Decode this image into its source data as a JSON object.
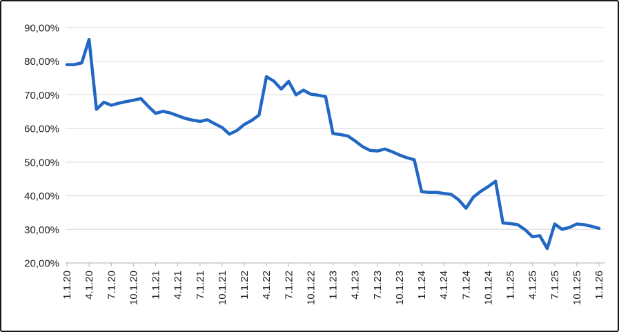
{
  "window": {
    "background": "#ffffff",
    "border_color": "#1a1a1a"
  },
  "chart_data": {
    "type": "line",
    "title": "",
    "legend": "none",
    "grid": "horizontal only",
    "unit": "%",
    "decimal_style": "comma",
    "ylim": [
      20,
      90
    ],
    "y_ticks": [
      90,
      80,
      70,
      60,
      50,
      40,
      30,
      20
    ],
    "y_tick_labels": [
      "90,00%",
      "80,00%",
      "70,00%",
      "60,00%",
      "50,00%",
      "40,00%",
      "30,00%",
      "20,00%"
    ],
    "x_tick_labels": [
      "1.1.20",
      "4.1.20",
      "7.1.20",
      "10.1.20",
      "1.1.21",
      "4.1.21",
      "7.1.21",
      "10.1.21",
      "1.1.22",
      "4.1.22",
      "7.1.22",
      "10.1.22",
      "1.1.23",
      "4.1.23",
      "7.1.23",
      "10.1.23",
      "1.1.24",
      "4.1.24",
      "7.1.24",
      "10.1.24",
      "1.1.25",
      "4.1.25",
      "7.1.25",
      "10.1.25",
      "1.1.26"
    ],
    "x_label_rotation_deg": -90,
    "points_per_quarter": 3,
    "x_start_label": "1.1.20",
    "x_end_label": "1.1.26",
    "series": [
      {
        "name": "percentage-series",
        "color": "#2268C3",
        "values": [
          79.0,
          79.0,
          79.5,
          86.5,
          65.7,
          67.8,
          66.9,
          67.5,
          68.0,
          68.4,
          68.9,
          66.6,
          64.5,
          65.1,
          64.6,
          63.8,
          63.0,
          62.5,
          62.1,
          62.6,
          61.4,
          60.3,
          58.3,
          59.4,
          61.2,
          62.4,
          64.0,
          75.4,
          74.1,
          71.7,
          74.0,
          70.0,
          71.4,
          70.2,
          69.9,
          69.5,
          58.5,
          58.2,
          57.8,
          56.3,
          54.6,
          53.5,
          53.3,
          53.9,
          53.1,
          52.1,
          51.3,
          50.7,
          41.2,
          41.0,
          41.0,
          40.7,
          40.4,
          38.8,
          36.3,
          39.6,
          41.3,
          42.7,
          44.3,
          31.9,
          31.7,
          31.4,
          29.9,
          27.8,
          28.1,
          24.3,
          31.6,
          30.0,
          30.6,
          31.6,
          31.4,
          30.9,
          30.3
        ]
      }
    ],
    "style": {
      "line_color": "#2268C3",
      "line_width": 4.5,
      "gridline_color": "#d9d9d9",
      "axis_line_color": "#bfbfbf",
      "tick_color": "#b3b3b3",
      "label_color": "#212121",
      "label_font_size": 15
    }
  }
}
